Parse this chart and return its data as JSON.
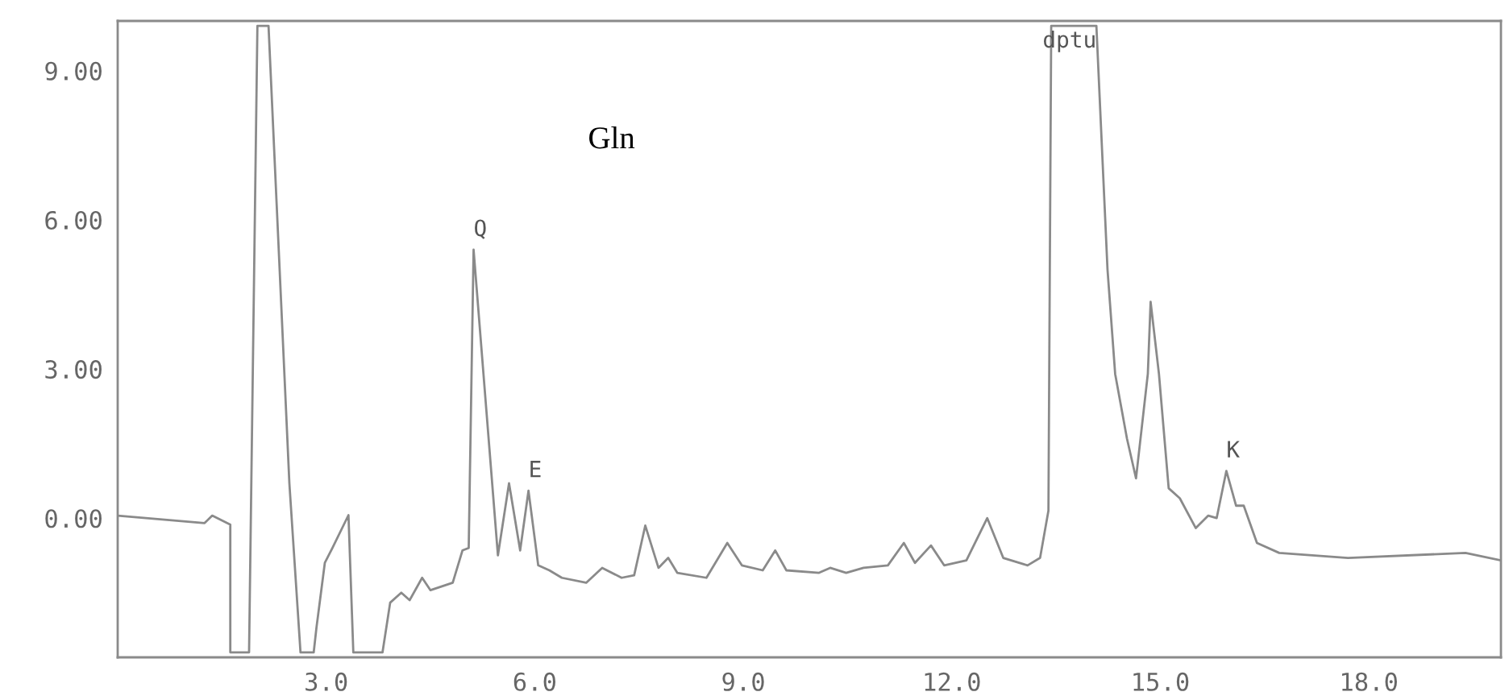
{
  "chart_data": {
    "type": "line",
    "x": [
      0,
      1.25,
      1.36,
      1.62,
      1.62,
      1.89,
      2.01,
      2.17,
      2.47,
      2.63,
      2.82,
      2.86,
      2.98,
      3.09,
      3.32,
      3.39,
      3.81,
      3.92,
      4.08,
      4.2,
      4.38,
      4.5,
      4.82,
      4.96,
      5.05,
      5.12,
      5.47,
      5.63,
      5.79,
      5.91,
      6.05,
      6.21,
      6.39,
      6.74,
      6.97,
      7.25,
      7.43,
      7.59,
      7.78,
      7.92,
      8.05,
      8.47,
      8.77,
      8.98,
      9.28,
      9.46,
      9.62,
      10.09,
      10.25,
      10.48,
      10.73,
      11.08,
      11.31,
      11.47,
      11.7,
      11.89,
      12.21,
      12.51,
      12.74,
      13.09,
      13.27,
      13.39,
      13.43,
      14.08,
      14.24,
      14.35,
      14.52,
      14.65,
      14.82,
      14.86,
      14.98,
      15.12,
      15.28,
      15.51,
      15.69,
      15.81,
      15.95,
      16.09,
      16.2,
      16.39,
      16.71,
      17.7,
      19.39,
      19.9
    ],
    "series": [
      {
        "color": "#8a8a8a",
        "values": [
          0.05,
          -0.1,
          0.05,
          -0.13,
          -2.7,
          -2.7,
          9.9,
          9.9,
          0.7,
          -2.7,
          -2.7,
          -2.2,
          -0.9,
          -0.6,
          0.06,
          -2.7,
          -2.7,
          -1.7,
          -1.5,
          -1.65,
          -1.2,
          -1.45,
          -1.3,
          -0.65,
          -0.6,
          5.4,
          -0.75,
          0.7,
          -0.65,
          0.55,
          -0.95,
          -1.05,
          -1.2,
          -1.3,
          -1.0,
          -1.2,
          -1.15,
          -0.15,
          -1.0,
          -0.8,
          -1.1,
          -1.2,
          -0.5,
          -0.95,
          -1.05,
          -0.65,
          -1.05,
          -1.1,
          -1.0,
          -1.1,
          -1.0,
          -0.95,
          -0.5,
          -0.9,
          -0.55,
          -0.95,
          -0.85,
          0,
          -0.8,
          -0.95,
          -0.8,
          0.15,
          9.9,
          9.9,
          5.0,
          2.9,
          1.6,
          0.8,
          2.9,
          4.35,
          2.9,
          0.6,
          0.4,
          -0.2,
          0.05,
          0,
          0.95,
          0.25,
          0.25,
          -0.5,
          -0.7,
          -0.8,
          -0.7,
          -0.85
        ]
      }
    ],
    "xlim": [
      0,
      19.9
    ],
    "ylim": [
      -2.8,
      10
    ],
    "xticks": [
      {
        "value": 3,
        "label": "3.0"
      },
      {
        "value": 6,
        "label": "6.0"
      },
      {
        "value": 9,
        "label": "9.0"
      },
      {
        "value": 12,
        "label": "12.0"
      },
      {
        "value": 15,
        "label": "15.0"
      },
      {
        "value": 18,
        "label": "18.0"
      }
    ],
    "yticks": [
      {
        "value": 0,
        "label": "0.00"
      },
      {
        "value": 3,
        "label": "3.00"
      },
      {
        "value": 6,
        "label": "6.00"
      },
      {
        "value": 9,
        "label": "9.00"
      }
    ],
    "annotations": [
      "Gln",
      {
        "text": "Q",
        "x": 5.12,
        "y": 5.4
      },
      {
        "text": "E",
        "x": 5.91,
        "y": 0.55
      },
      {
        "text": "dptu",
        "x": 14.08,
        "y": 9.9
      },
      {
        "text": "K",
        "x": 15.95,
        "y": 0.95
      }
    ],
    "grid": false,
    "legend": false,
    "marker": "none",
    "line_style": "solid"
  }
}
